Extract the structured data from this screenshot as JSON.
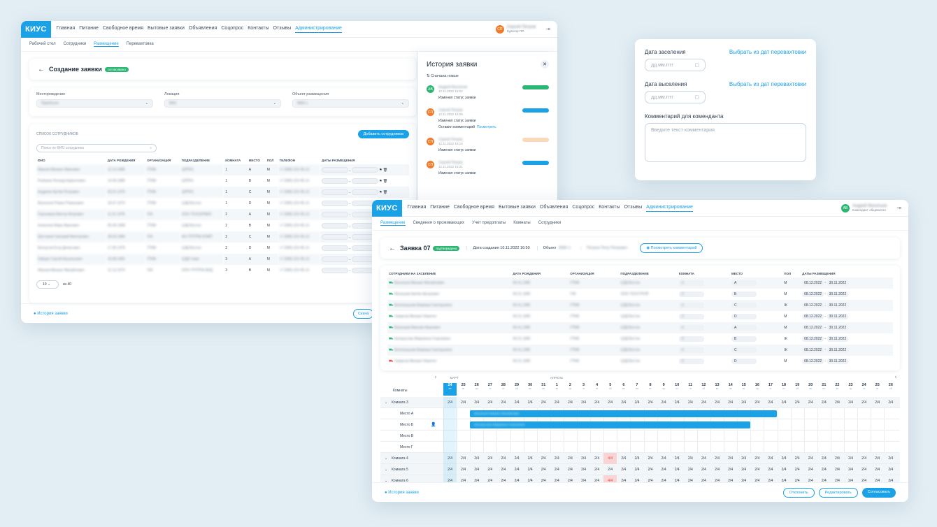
{
  "w1": {
    "logo": "КИУС",
    "nav": [
      "Главная",
      "Питание",
      "Свободное время",
      "Бытовые заявки",
      "Объявления",
      "Соцопрос",
      "Контакты",
      "Отзывы",
      "Администрирование"
    ],
    "user_name": "Сергей Петров",
    "user_role": "Куратор ПО",
    "user_initials": "СП",
    "subnav": [
      "Рабочий стол",
      "Сотрудники",
      "Размещение",
      "Перевахтовка"
    ],
    "title": "Создание заявки",
    "badge": "согласовано",
    "f1_label": "Месторождение",
    "f1_value": "Приобское",
    "f2_label": "Локация",
    "f2_value": "ВЖ1",
    "f3_label": "Объект размещения",
    "f3_value": "ВЖК-1",
    "emp_title": "СПИСОК СОТРУДНИКОВ",
    "add_btn": "Добавить сотрудников",
    "search_ph": "Поиск по ФИО сотрудника",
    "cols": [
      "ФИО",
      "ДАТА РОЖДЕНИЯ",
      "ОРГАНИЗАЦИЯ",
      "ПОДРАЗДЕЛЕНИЕ",
      "КОМНАТА",
      "МЕСТО",
      "ПОЛ",
      "ТЕЛЕФОН",
      "ДАТЫ РАЗМЕЩЕНИЯ"
    ],
    "rows": [
      [
        "Иванов Михаил Иванович",
        "12.12.1985",
        "ГПНБ",
        "ЦППН1",
        "1",
        "A",
        "М",
        "+7 (999) 222-45-12"
      ],
      [
        "Рыбаков Леонид Кириллович",
        "14.06.1980",
        "ГПНБ",
        "ЦППН1",
        "1",
        "B",
        "М",
        "+7 (999) 222-45-12"
      ],
      [
        "Андреев Артём Петрович",
        "03.01.1976",
        "ГПНБ",
        "ЦППН1",
        "1",
        "C",
        "М",
        "+7 (999) 222-45-12"
      ],
      [
        "Васильев Роман Романович",
        "18.07.1973",
        "ГПНБ",
        "ЦЭД Восток",
        "1",
        "D",
        "М",
        "+7 (999) 222-45-12"
      ],
      [
        "Герасимов Виктор Игоревич",
        "11.01.1978",
        "ГКК",
        "ООО ТЕХСЕРВИС",
        "2",
        "A",
        "М",
        "+7 (999) 222-45-12"
      ],
      [
        "Алексеев Марк Иванович",
        "05.06.1968",
        "ГПНБ",
        "ЦЭД Восток",
        "2",
        "B",
        "М",
        "+7 (999) 222-45-12"
      ],
      [
        "Шестаков Григорий Викторович",
        "28.03.1984",
        "ГКК",
        "АО ГРУППА КОМП",
        "2",
        "C",
        "М",
        "+7 (999) 222-45-12"
      ],
      [
        "Белоусов Егор Денисович",
        "17.05.1979",
        "ГПНБ",
        "ЦЭД Восток",
        "2",
        "D",
        "М",
        "+7 (999) 222-45-12"
      ],
      [
        "Зайцев Сергей Васильевич",
        "19.08.1981",
        "ГПНБ",
        "ЦЭД Главн",
        "3",
        "A",
        "М",
        "+7 (999) 222-45-12"
      ],
      [
        "Иванов Михаил Михайлович",
        "12.12.1974",
        "ГКК",
        "ООО ГРУППА ВНД",
        "3",
        "B",
        "М",
        "+7 (999) 222-45-12"
      ]
    ],
    "page_size": "10",
    "of_total": "из 40",
    "history_link": "История заявки",
    "cancel_btn": "Скача",
    "hist_title": "История заявки",
    "hist_sort": "Сначала новые",
    "hist": [
      {
        "init": "АВ",
        "name": "Андрей Васильев",
        "date": "12.11.2022 15:02",
        "text": "Изменил статус заявки",
        "color": "#2bb673",
        "badge": "#2bb673",
        "extra": ""
      },
      {
        "init": "СП",
        "name": "Сергей Петров",
        "date": "12.11.2022 15:09",
        "text": "Изменил статус заявки",
        "color": "#f07c2a",
        "badge": "#1aa1e6",
        "extra": "Оставил комментарий",
        "link": "Посмотреть"
      },
      {
        "init": "СП",
        "name": "Сергей Петров",
        "date": "12.11.2022 15:13",
        "text": "Изменил статус заявки",
        "color": "#f07c2a",
        "badge": "#fbd9b8",
        "extra": ""
      },
      {
        "init": "СП",
        "name": "Сергей Петров",
        "date": "12.11.2022 15:21",
        "text": "Изменил статус заявки",
        "color": "#f07c2a",
        "badge": "#1aa1e6",
        "extra": ""
      }
    ]
  },
  "w2": {
    "in_label": "Дата заселения",
    "in_link": "Выбрать из дат перевахтовки",
    "in_ph": "дд.мм.гггг",
    "out_label": "Дата выселения",
    "out_link": "Выбрать из дат перевахтовки",
    "out_ph": "дд.мм.гггг",
    "comment_label": "Комментарий для коменданта",
    "comment_ph": "Введите текст комментария"
  },
  "w3": {
    "logo": "КИУС",
    "nav": [
      "Главная",
      "Питание",
      "Свободное время",
      "Бытовые заявки",
      "Объявления",
      "Соцопрос",
      "Контакты",
      "Отзывы",
      "Администрирование"
    ],
    "user_name": "Андрей Васильев",
    "user_role": "Комендант общежития",
    "user_initials": "АВ",
    "subnav": [
      "Размещение",
      "Сведения о проживающих",
      "Учет предоплаты",
      "Комнаты",
      "Сотрудники"
    ],
    "title": "Заявка 07",
    "badge": "подтверждена",
    "created": "Дата создания 10.11.2022 16:50",
    "object_lbl": "Объект",
    "object_val": "ВЖК-1",
    "person": "Петров Петр Петрович",
    "comment_btn": "Посмотреть комментарий",
    "cols": [
      "СОТРУДНИКИ НА ЗАСЕЛЕНИЕ",
      "ДАТА РОЖДЕНИЯ",
      "ОРГАНИЗАЦИЯ",
      "ПОДРАЗДЕЛЕНИЕ",
      "КОМНАТА",
      "МЕСТО",
      "ПОЛ",
      "ДАТЫ РАЗМЕЩЕНИЯ"
    ],
    "rows": [
      [
        "Васильев Михаил Михайлович",
        "05.01.1985",
        "ГПНБ",
        "ЦЭД Восток",
        "3",
        "A",
        "М"
      ],
      [
        "Малышев Артём Артурович",
        "05.01.1985",
        "ГКК",
        "ООО ТЕХСТРОЙ",
        "3",
        "B",
        "М"
      ],
      [
        "Белограшова Варвара Григорьевна",
        "05.01.1985",
        "ГПНБ",
        "ЦЭД Восток",
        "3",
        "C",
        "Ж"
      ],
      [
        "Смирнов Михаил Никитич",
        "05.01.1985",
        "ГПНБ",
        "ЦЭД Восток",
        "3",
        "D",
        "М"
      ],
      [
        "Воронцов Максим Иванович",
        "05.01.1985",
        "ГПНБ",
        "ЦЭД Восток",
        "4",
        "A",
        "М"
      ],
      [
        "Белорусова Марианна Георгиевна",
        "05.01.1985",
        "ГПНБ",
        "ЦЭД Восток",
        "4",
        "B",
        "Ж"
      ],
      [
        "Белограшова Варвара Григорьевна",
        "05.01.1985",
        "ГПНБ",
        "ЦЭД Восток",
        "4",
        "C",
        "Ж"
      ],
      [
        "Смирнов Михаил Никитич",
        "05.01.1985",
        "ГПНБ",
        "ЦЭД Восток",
        "4",
        "D",
        "М"
      ]
    ],
    "date_from": "08.12.2022",
    "date_to": "30.11.2022",
    "rooms_lbl": "Комнаты",
    "month1": "МАРТ",
    "month2": "АПРЕЛЬ",
    "days": [
      "24",
      "25",
      "26",
      "27",
      "28",
      "29",
      "30",
      "31",
      "1",
      "2",
      "3",
      "4",
      "5",
      "6",
      "7",
      "8",
      "9",
      "10",
      "11",
      "12",
      "13",
      "14",
      "15",
      "16",
      "17",
      "18",
      "19",
      "20",
      "21",
      "22",
      "23",
      "24",
      "25",
      "26"
    ],
    "wd": [
      "пн",
      "вт",
      "ср",
      "чт",
      "пт",
      "сб",
      "вс",
      "пн",
      "вт",
      "ср",
      "чт",
      "пт",
      "сб",
      "вс",
      "пн",
      "вт",
      "ср",
      "чт",
      "пт",
      "сб",
      "вс",
      "пн",
      "вт",
      "ср",
      "чт",
      "пт",
      "сб",
      "вс",
      "пн",
      "вт",
      "ср",
      "чт",
      "пт",
      "сб"
    ],
    "room3": "Комната 3",
    "room4": "Комната 4",
    "room5": "Комната 5",
    "room6": "Комната 6",
    "places": [
      "Место А",
      "Место Б",
      "Место В",
      "Место Г"
    ],
    "occ": "2/4",
    "full": "4/4",
    "bar_a": "Васильев Михаил Михайлович",
    "bar_b": "Белорусова Марианна Георгиевна",
    "history_link": "История заявки",
    "reject_btn": "Отклонить",
    "edit_btn": "Редактировать",
    "approve_btn": "Согласовать"
  }
}
